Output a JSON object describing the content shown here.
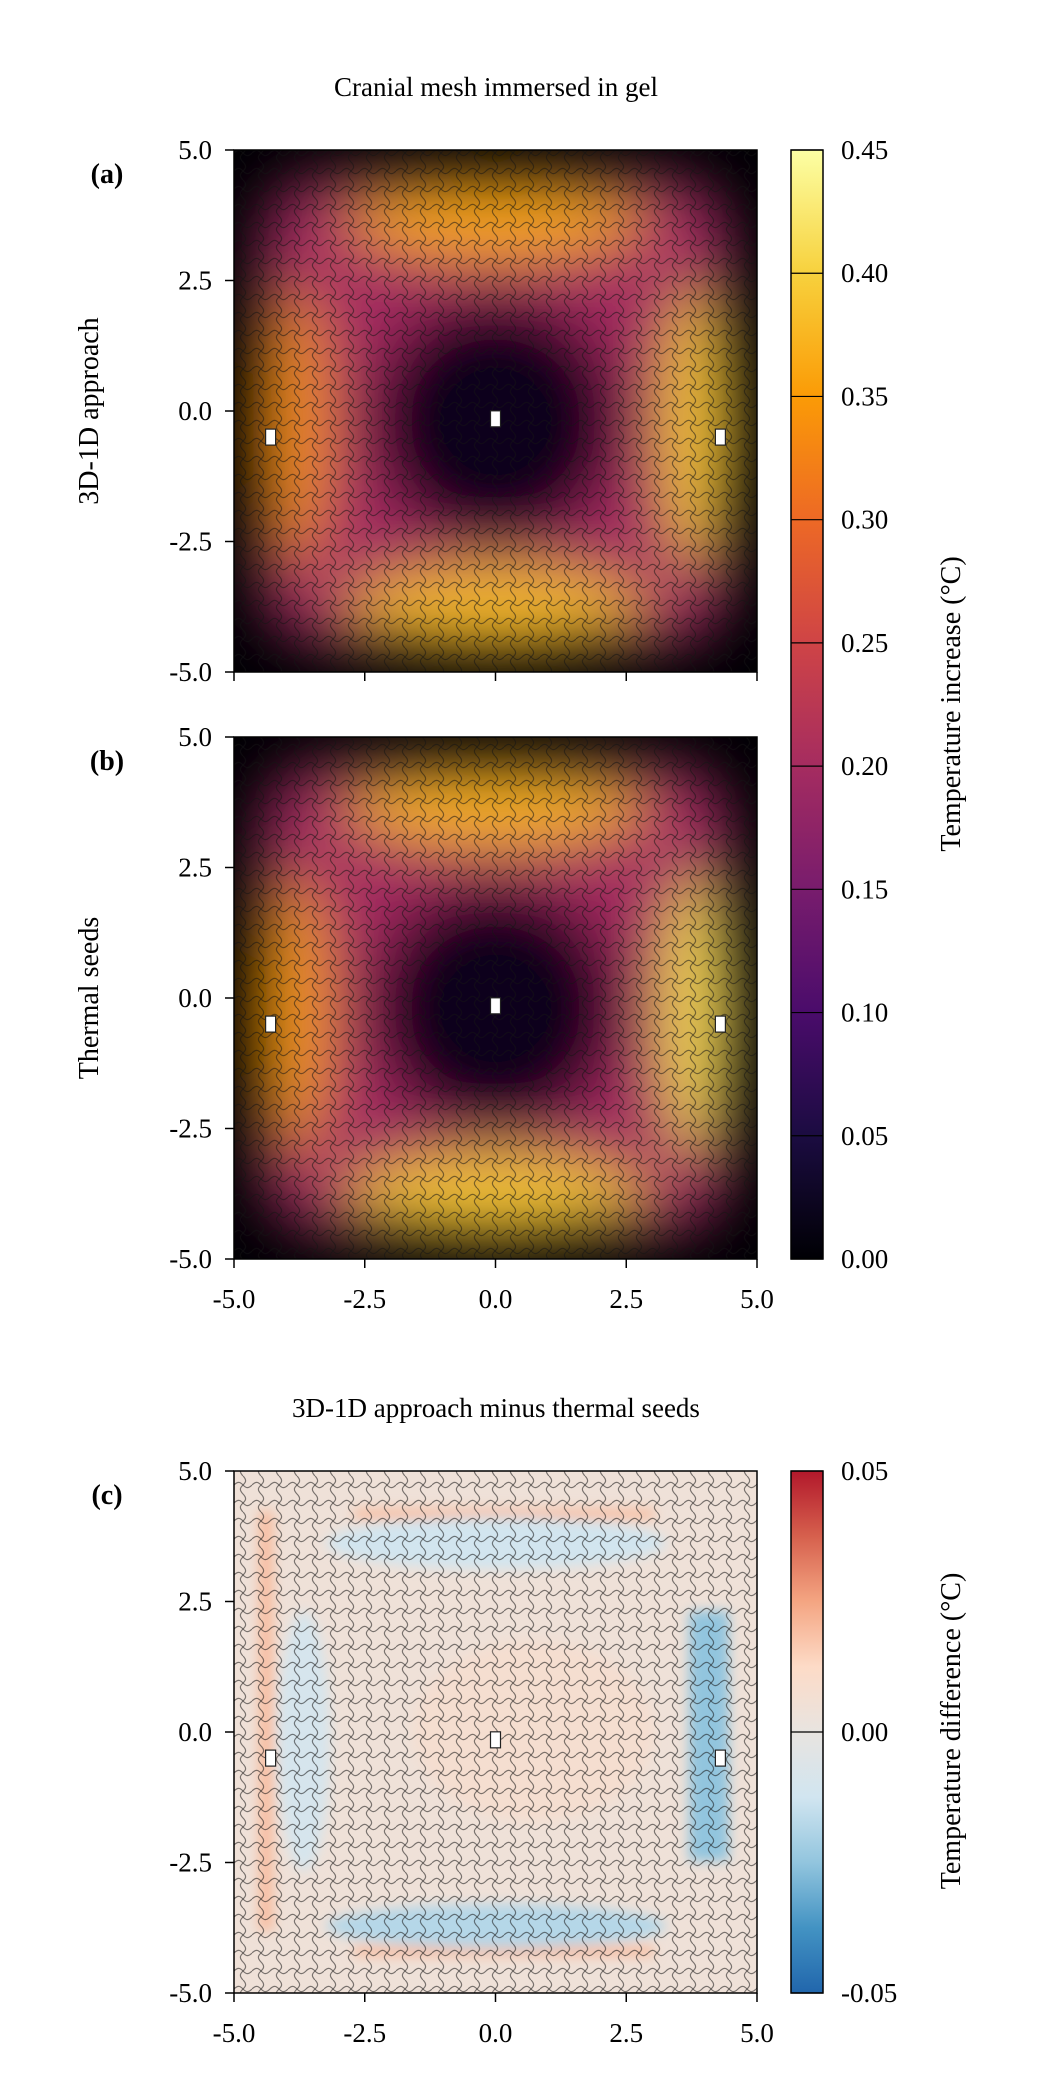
{
  "chart_data": [
    {
      "id": "a",
      "type": "heatmap",
      "panel_label": "(a)",
      "title": "Cranial mesh immersed in gel",
      "ylabel": "3D-1D approach",
      "xlim": [
        -5.0,
        5.0
      ],
      "ylim": [
        -5.0,
        5.0
      ],
      "yticks": [
        "5.0",
        "2.5",
        "0.0",
        "-2.5",
        "-5.0"
      ],
      "xticks": [],
      "hotspots": {
        "top": {
          "x": 0.0,
          "y": 3.7,
          "value": 0.36
        },
        "bottom": {
          "x": 0.0,
          "y": -3.8,
          "value": 0.38
        },
        "left": {
          "x": -3.9,
          "y": -0.3,
          "value": 0.34
        },
        "right": {
          "x": 3.9,
          "y": -0.3,
          "value": 0.39
        },
        "center": {
          "x": 0.0,
          "y": -0.2,
          "value": 0.02
        }
      },
      "markers": [
        {
          "x": -4.3,
          "y": -0.5
        },
        {
          "x": 0.0,
          "y": -0.15
        },
        {
          "x": 4.3,
          "y": -0.5
        }
      ]
    },
    {
      "id": "b",
      "type": "heatmap",
      "panel_label": "(b)",
      "ylabel": "Thermal seeds",
      "xlim": [
        -5.0,
        5.0
      ],
      "ylim": [
        -5.0,
        5.0
      ],
      "yticks": [
        "5.0",
        "2.5",
        "0.0",
        "-2.5",
        "-5.0"
      ],
      "xticks": [
        "-5.0",
        "-2.5",
        "0.0",
        "2.5",
        "5.0"
      ],
      "hotspots": {
        "top": {
          "x": 0.0,
          "y": 3.7,
          "value": 0.37
        },
        "bottom": {
          "x": 0.0,
          "y": -3.8,
          "value": 0.39
        },
        "left": {
          "x": -3.9,
          "y": -0.3,
          "value": 0.35
        },
        "right": {
          "x": 3.9,
          "y": -0.3,
          "value": 0.41
        },
        "center": {
          "x": 0.0,
          "y": -0.2,
          "value": 0.02
        }
      },
      "markers": [
        {
          "x": -4.3,
          "y": -0.5
        },
        {
          "x": 0.0,
          "y": -0.15
        },
        {
          "x": 4.3,
          "y": -0.5
        }
      ],
      "colorbar": {
        "label": "Temperature increase (°C)",
        "range": [
          0.0,
          0.45
        ],
        "ticks": [
          "0.45",
          "0.40",
          "0.35",
          "0.30",
          "0.25",
          "0.20",
          "0.15",
          "0.10",
          "0.05",
          "0.00"
        ],
        "colormap": "inferno",
        "colors": [
          "#000004",
          "#1b0c41",
          "#4a0c6b",
          "#781c6d",
          "#a52c60",
          "#cf4446",
          "#ed6925",
          "#fb9b06",
          "#f7d13d",
          "#fcffa4"
        ]
      }
    },
    {
      "id": "c",
      "type": "heatmap",
      "panel_label": "(c)",
      "title": "3D-1D approach minus thermal seeds",
      "xlim": [
        -5.0,
        5.0
      ],
      "ylim": [
        -5.0,
        5.0
      ],
      "yticks": [
        "5.0",
        "2.5",
        "0.0",
        "-2.5",
        "-5.0"
      ],
      "xticks": [
        "-5.0",
        "-2.5",
        "0.0",
        "2.5",
        "5.0"
      ],
      "markers": [
        {
          "x": -4.3,
          "y": -0.5
        },
        {
          "x": 0.0,
          "y": -0.15
        },
        {
          "x": 4.3,
          "y": -0.5
        }
      ],
      "colorbar": {
        "label": "Temperature difference (°C)",
        "range": [
          -0.05,
          0.05
        ],
        "ticks": [
          "0.05",
          "0.00",
          "-0.05"
        ],
        "colormap": "RdBu_r",
        "colors": [
          "#2166ac",
          "#4393c3",
          "#92c5de",
          "#d1e5f0",
          "#e8e4e0",
          "#fddbc7",
          "#f4a582",
          "#d6604d",
          "#b2182b"
        ]
      }
    }
  ]
}
